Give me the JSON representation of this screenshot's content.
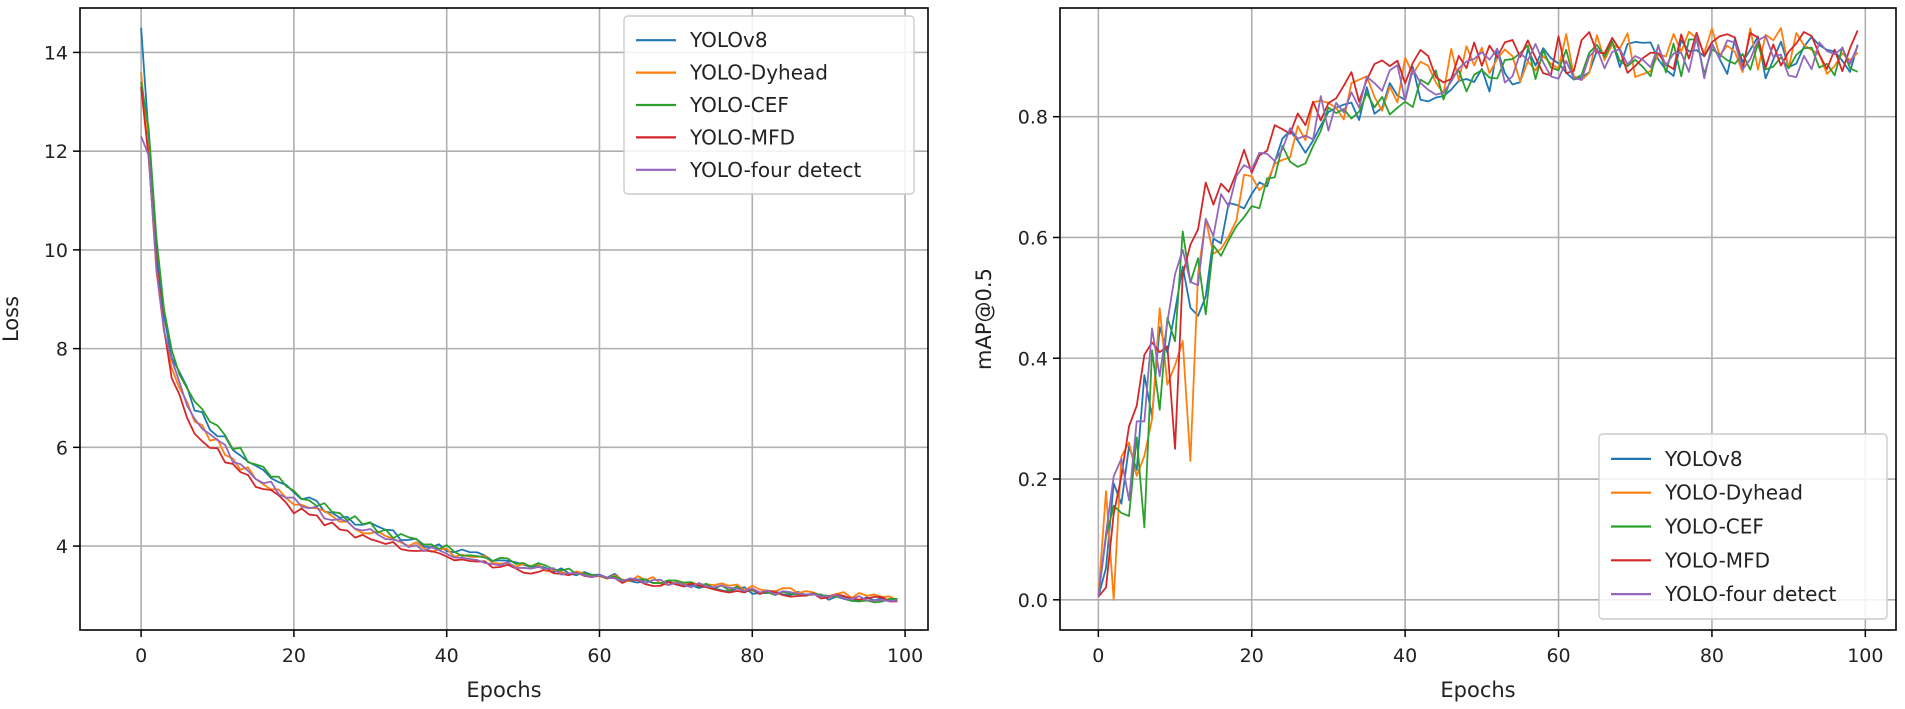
{
  "colors": {
    "YOLOv8": "#1f77b4",
    "YOLO-Dyhead": "#ff7f0e",
    "YOLO-CEF": "#2ca02c",
    "YOLO-MFD": "#d62728",
    "YOLO-four detect": "#9467bd",
    "grid": "#b0b0b0",
    "axis": "#000000"
  },
  "chart_data": [
    {
      "type": "line",
      "title": "",
      "xlabel": "Epochs",
      "ylabel": "Loss",
      "xlim": [
        -8,
        103
      ],
      "ylim": [
        2.3,
        14.9
      ],
      "xticks": [
        0,
        20,
        40,
        60,
        80,
        100
      ],
      "yticks": [
        4,
        6,
        8,
        10,
        12,
        14
      ],
      "tick_labels_x": [
        "0",
        "20",
        "40",
        "60",
        "80",
        "100"
      ],
      "tick_labels_y": [
        "4",
        "6",
        "8",
        "10",
        "12",
        "14"
      ],
      "grid": true,
      "legend_position": "top-right",
      "legend": [
        "YOLOv8",
        "YOLO-Dyhead",
        "YOLO-CEF",
        "YOLO-MFD",
        "YOLO-four detect"
      ],
      "series": [
        {
          "name": "YOLOv8",
          "start": 14.5,
          "final": 2.92,
          "a": 4.3,
          "tau1": 1.5,
          "b": 3.6,
          "tau2": 16,
          "c": 1.55,
          "tau3": 70,
          "noise": 0.06,
          "seed": 11
        },
        {
          "name": "YOLO-Dyhead",
          "start": 13.6,
          "final": 2.9,
          "a": 4.2,
          "tau1": 1.4,
          "b": 3.4,
          "tau2": 15,
          "c": 1.5,
          "tau3": 70,
          "noise": 0.06,
          "seed": 23
        },
        {
          "name": "YOLO-CEF",
          "start": 13.4,
          "final": 2.93,
          "a": 4.2,
          "tau1": 1.5,
          "b": 3.8,
          "tau2": 15,
          "c": 1.6,
          "tau3": 70,
          "noise": 0.06,
          "seed": 37
        },
        {
          "name": "YOLO-MFD",
          "start": 13.3,
          "final": 2.88,
          "a": 4.3,
          "tau1": 1.5,
          "b": 3.3,
          "tau2": 14,
          "c": 1.45,
          "tau3": 70,
          "noise": 0.06,
          "seed": 41
        },
        {
          "name": "YOLO-four detect",
          "start": 12.3,
          "final": 2.9,
          "a": 4.1,
          "tau1": 1.5,
          "b": 3.5,
          "tau2": 15,
          "c": 1.5,
          "tau3": 70,
          "noise": 0.06,
          "seed": 53
        }
      ]
    },
    {
      "type": "line",
      "title": "",
      "xlabel": "Epochs",
      "ylabel": "mAP@0.5",
      "xlim": [
        -5,
        104
      ],
      "ylim": [
        -0.05,
        0.98
      ],
      "xticks": [
        0,
        20,
        40,
        60,
        80,
        100
      ],
      "yticks": [
        0.0,
        0.2,
        0.4,
        0.6,
        0.8
      ],
      "tick_labels_x": [
        "0",
        "20",
        "40",
        "60",
        "80",
        "100"
      ],
      "tick_labels_y": [
        "0.0",
        "0.2",
        "0.4",
        "0.6",
        "0.8"
      ],
      "grid": true,
      "legend_position": "bottom-right",
      "legend": [
        "YOLOv8",
        "YOLO-Dyhead",
        "YOLO-CEF",
        "YOLO-MFD",
        "YOLO-four detect"
      ],
      "series": [
        {
          "name": "YOLOv8",
          "end": 0.9,
          "tau": 14,
          "noise": 0.035,
          "seed": 101,
          "spikes": []
        },
        {
          "name": "YOLO-Dyhead",
          "end": 0.91,
          "tau": 14,
          "noise": 0.04,
          "seed": 113,
          "spikes": [
            [
              1,
              0.18
            ],
            [
              2,
              0.0
            ],
            [
              12,
              0.23
            ],
            [
              65,
              0.935
            ]
          ]
        },
        {
          "name": "YOLO-CEF",
          "end": 0.905,
          "tau": 15,
          "noise": 0.035,
          "seed": 127,
          "spikes": [
            [
              6,
              0.12
            ],
            [
              11,
              0.61
            ]
          ]
        },
        {
          "name": "YOLO-MFD",
          "end": 0.91,
          "tau": 12,
          "noise": 0.035,
          "seed": 131,
          "spikes": [
            [
              8,
              0.41
            ],
            [
              10,
              0.25
            ]
          ]
        },
        {
          "name": "YOLO-four detect",
          "end": 0.9,
          "tau": 13,
          "noise": 0.035,
          "seed": 139,
          "spikes": [
            [
              1,
              0.11
            ]
          ]
        }
      ]
    }
  ]
}
